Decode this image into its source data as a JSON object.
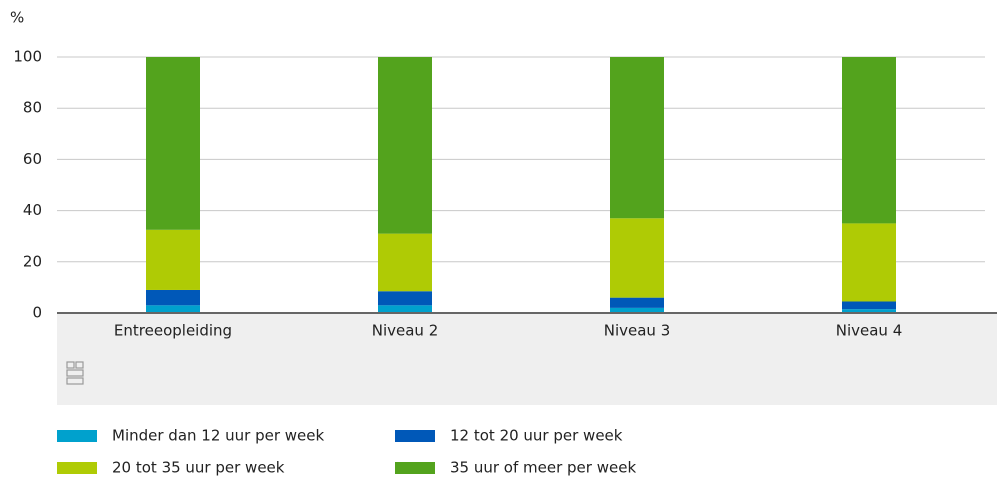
{
  "chart_data": {
    "type": "stacked_bar",
    "y_axis_label": "%",
    "categories": [
      "Entreeopleiding",
      "Niveau 2",
      "Niveau 3",
      "Niveau 4"
    ],
    "series": [
      {
        "name": "Minder dan 12 uur per week",
        "color": "#00a1cd",
        "values": [
          3,
          3,
          2,
          1.5
        ]
      },
      {
        "name": "12 tot 20 uur per week",
        "color": "#0058b8",
        "values": [
          6,
          5.5,
          4,
          3
        ]
      },
      {
        "name": "20 tot 35 uur per week",
        "color": "#afcb05",
        "values": [
          23.5,
          22.5,
          31,
          30.5
        ]
      },
      {
        "name": "35 uur of meer per week",
        "color": "#53a31d",
        "values": [
          67.5,
          69,
          63,
          65
        ]
      }
    ],
    "ylim": [
      0,
      100
    ],
    "yticks": [
      0,
      20,
      40,
      60,
      80,
      100
    ],
    "grid": true
  }
}
